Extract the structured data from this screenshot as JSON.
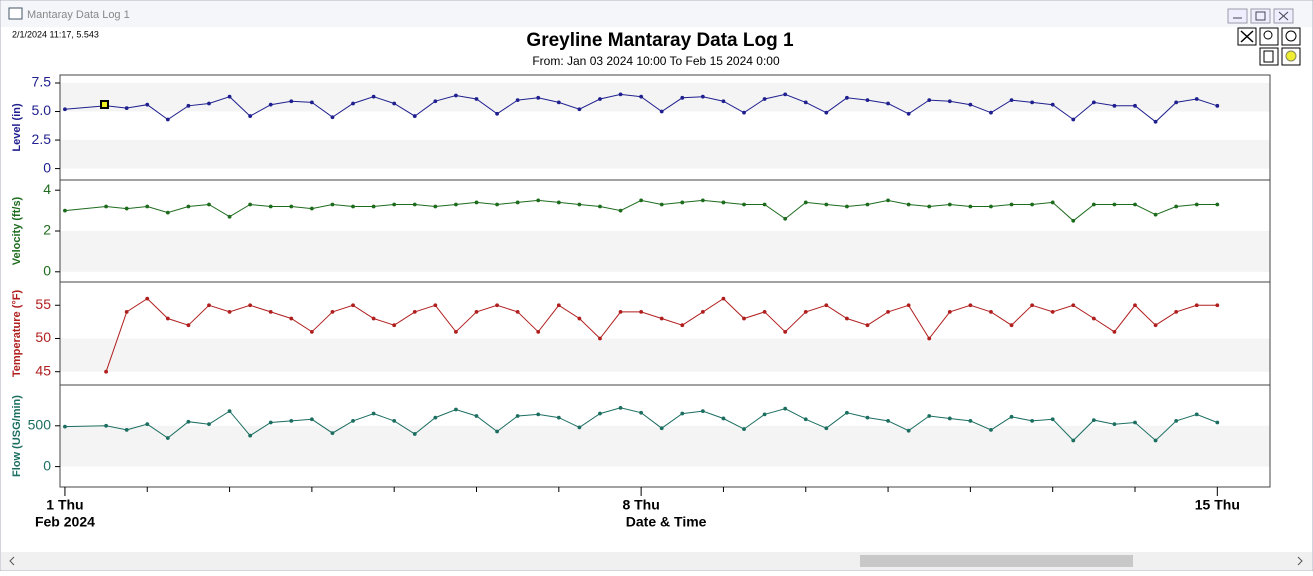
{
  "window": {
    "title": "Mantaray Data Log 1",
    "cursor_readout": "2/1/2024 11:17, 5.543"
  },
  "chart_data": {
    "type": "line",
    "title": "Greyline Mantaray Data Log 1",
    "subtitle": "From: Jan 03 2024 10:00 To Feb 15 2024 0:00",
    "xlabel": "Date & Time",
    "xtick_sublabel": "Feb 2024",
    "xlim": [
      0.94,
      15.64
    ],
    "xticks": [
      {
        "value": 1,
        "label": "1 Thu"
      },
      {
        "value": 8,
        "label": "8 Thu"
      },
      {
        "value": 15,
        "label": "15 Thu"
      }
    ],
    "xminor_ticks": [
      2,
      3,
      4,
      5,
      6,
      7,
      9,
      10,
      11,
      12,
      13,
      14
    ],
    "x": [
      1,
      1.5,
      1.75,
      2,
      2.25,
      2.5,
      2.75,
      3,
      3.25,
      3.5,
      3.75,
      4,
      4.25,
      4.5,
      4.75,
      5,
      5.25,
      5.5,
      5.75,
      6,
      6.25,
      6.5,
      6.75,
      7,
      7.25,
      7.5,
      7.75,
      8,
      8.25,
      8.5,
      8.75,
      9,
      9.25,
      9.5,
      9.75,
      10,
      10.25,
      10.5,
      10.75,
      11,
      11.25,
      11.5,
      11.75,
      12,
      12.25,
      12.5,
      12.75,
      13,
      13.25,
      13.5,
      13.75,
      14,
      14.25,
      14.5,
      14.75,
      15
    ],
    "series": [
      {
        "name": "Level (in)",
        "color": "#1f1f8f",
        "ylim": [
          -1,
          8.2
        ],
        "yticks": [
          0,
          2.5,
          {
            "value": 5,
            "label": "5.0"
          },
          7.5
        ],
        "values": [
          5.2,
          5.5,
          5.3,
          5.6,
          4.3,
          5.5,
          5.7,
          6.3,
          4.6,
          5.6,
          5.9,
          5.8,
          4.5,
          5.7,
          6.3,
          5.7,
          4.6,
          5.9,
          6.4,
          6.1,
          4.8,
          6.0,
          6.2,
          5.8,
          5.2,
          6.1,
          6.5,
          6.3,
          5.0,
          6.2,
          6.3,
          5.9,
          4.9,
          6.1,
          6.5,
          5.8,
          4.9,
          6.2,
          6.0,
          5.7,
          4.8,
          6.0,
          5.9,
          5.6,
          4.9,
          6.0,
          5.8,
          5.6,
          4.3,
          5.8,
          5.5,
          5.5,
          4.1,
          5.8,
          6.1,
          5.5
        ]
      },
      {
        "name": "Velocity (ft/s)",
        "color": "#1d6b1d",
        "ylim": [
          -0.5,
          4.5
        ],
        "yticks": [
          0,
          2,
          4
        ],
        "values": [
          3.0,
          3.2,
          3.1,
          3.2,
          2.9,
          3.2,
          3.3,
          2.7,
          3.3,
          3.2,
          3.2,
          3.1,
          3.3,
          3.2,
          3.2,
          3.3,
          3.3,
          3.2,
          3.3,
          3.4,
          3.3,
          3.4,
          3.5,
          3.4,
          3.3,
          3.2,
          3.0,
          3.5,
          3.3,
          3.4,
          3.5,
          3.4,
          3.3,
          3.3,
          2.6,
          3.4,
          3.3,
          3.2,
          3.3,
          3.5,
          3.3,
          3.2,
          3.3,
          3.2,
          3.2,
          3.3,
          3.3,
          3.4,
          2.5,
          3.3,
          3.3,
          3.3,
          2.8,
          3.2,
          3.3,
          3.3
        ]
      },
      {
        "name": "Temperature (°F)",
        "color": "#b01e1e",
        "ylim": [
          43,
          58.5
        ],
        "yticks": [
          45,
          50,
          55
        ],
        "values": [
          null,
          45,
          54,
          56,
          53,
          52,
          55,
          54,
          55,
          54,
          53,
          51,
          54,
          55,
          53,
          52,
          54,
          55,
          51,
          54,
          55,
          54,
          51,
          55,
          53,
          50,
          54,
          54,
          53,
          52,
          54,
          56,
          53,
          54,
          51,
          54,
          55,
          53,
          52,
          54,
          55,
          50,
          54,
          55,
          54,
          52,
          55,
          54,
          55,
          53,
          51,
          55,
          52,
          54,
          55,
          55
        ]
      },
      {
        "name": "Flow (USG/min)",
        "color": "#1b6e60",
        "ylim": [
          -250,
          1000
        ],
        "yticks": [
          0,
          500
        ],
        "values": [
          490,
          500,
          450,
          520,
          350,
          550,
          520,
          680,
          380,
          540,
          560,
          580,
          410,
          560,
          650,
          560,
          400,
          600,
          700,
          620,
          430,
          620,
          640,
          600,
          480,
          650,
          720,
          660,
          470,
          650,
          680,
          590,
          460,
          640,
          710,
          580,
          470,
          660,
          600,
          560,
          440,
          620,
          590,
          560,
          450,
          610,
          560,
          580,
          320,
          570,
          520,
          540,
          320,
          560,
          640,
          540
        ]
      }
    ]
  }
}
